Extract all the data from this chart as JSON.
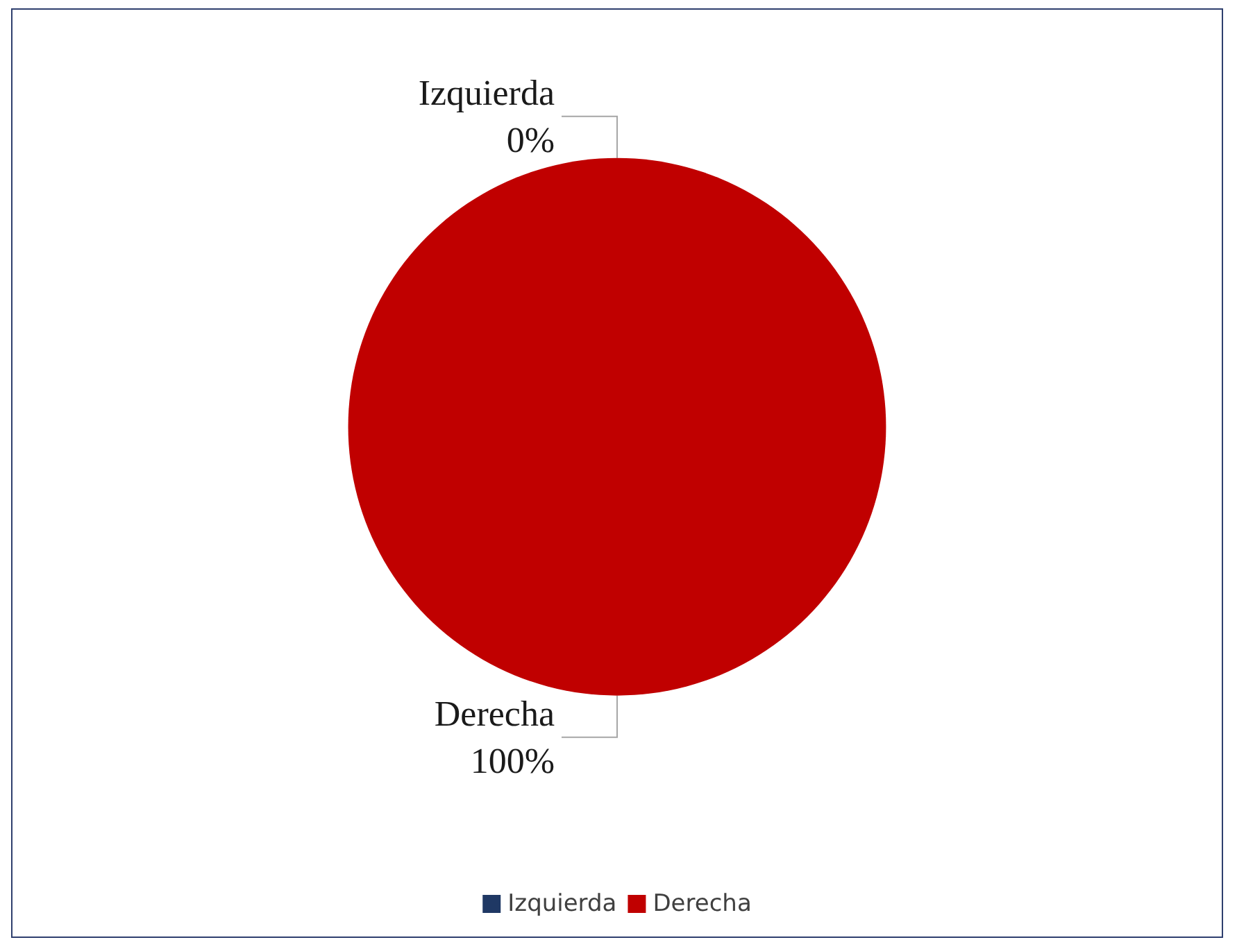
{
  "chart_data": {
    "type": "pie",
    "categories": [
      "Izquierda",
      "Derecha"
    ],
    "values": [
      0,
      100
    ],
    "colors": [
      "#1f3864",
      "#c00000"
    ],
    "value_labels": [
      "0%",
      "100%"
    ],
    "legend": "bottom"
  }
}
